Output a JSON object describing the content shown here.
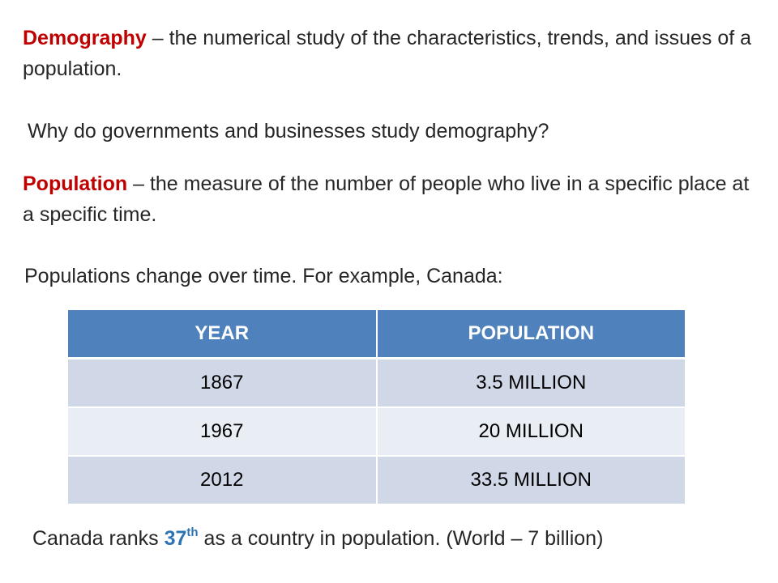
{
  "definitions": {
    "demography": {
      "term": "Demography",
      "text": " – the numerical study of the characteristics, trends, and issues of a population."
    },
    "question": "Why do governments and businesses study demography?",
    "population": {
      "term": "Population",
      "text": " – the measure of the number of people who live in a specific place at a specific time."
    },
    "example_intro": "Populations change over time. For example, Canada:"
  },
  "table": {
    "headers": [
      "YEAR",
      "POPULATION"
    ],
    "rows": [
      {
        "year": "1867",
        "population": "3.5 MILLION"
      },
      {
        "year": "1967",
        "population": "20 MILLION"
      },
      {
        "year": "2012",
        "population": "33.5 MILLION"
      }
    ]
  },
  "rank": {
    "before": "Canada ranks ",
    "number": "37",
    "suffix": "th",
    "after": " as a country in population. (World – 7 billion)"
  },
  "colors": {
    "term": "#c00000",
    "highlight": "#2e74b5",
    "table_header": "#4f81bd",
    "table_row_dark": "#d0d8e8",
    "table_row_light": "#e9edf4"
  }
}
